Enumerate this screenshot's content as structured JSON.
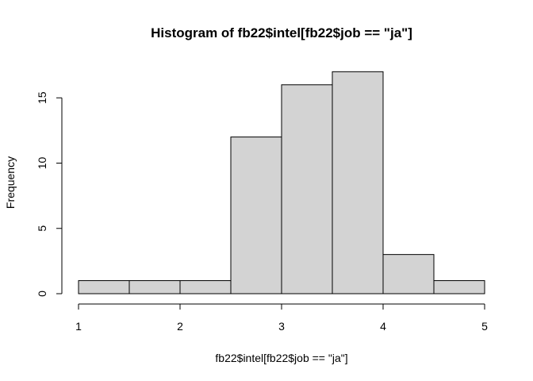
{
  "chart_data": {
    "type": "bar",
    "title": "Histogram of fb22$intel[fb22$job == \"ja\"]",
    "xlabel": "fb22$intel[fb22$job == \"ja\"]",
    "ylabel": "Frequency",
    "bins": [
      {
        "from": 1.0,
        "to": 1.5,
        "count": 1
      },
      {
        "from": 1.5,
        "to": 2.0,
        "count": 1
      },
      {
        "from": 2.0,
        "to": 2.5,
        "count": 1
      },
      {
        "from": 2.5,
        "to": 3.0,
        "count": 12
      },
      {
        "from": 3.0,
        "to": 3.5,
        "count": 16
      },
      {
        "from": 3.5,
        "to": 4.0,
        "count": 17
      },
      {
        "from": 4.0,
        "to": 4.5,
        "count": 3
      },
      {
        "from": 4.5,
        "to": 5.0,
        "count": 1
      }
    ],
    "xlim": [
      1,
      5
    ],
    "ylim": [
      0,
      17
    ],
    "xticks": [
      "1",
      "2",
      "3",
      "4",
      "5"
    ],
    "yticks": [
      "0",
      "5",
      "10",
      "15"
    ],
    "bar_color": "#d3d3d3",
    "grid": false,
    "legend": "none"
  }
}
